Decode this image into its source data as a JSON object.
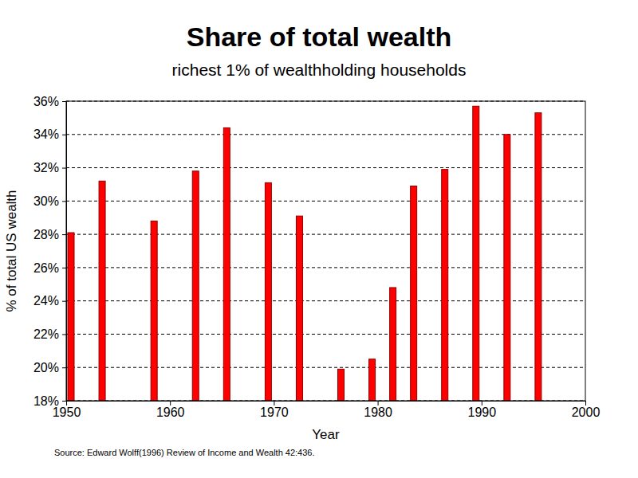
{
  "chart_data": {
    "type": "bar",
    "title": "Share of total wealth",
    "subtitle": "richest 1% of wealthholding households",
    "x_label": "Year",
    "y_label": "% of total US wealth",
    "annotations": [
      "Source: Edward Wolff(1996) Review of Income and Wealth 42:436."
    ],
    "x": [
      1950,
      1953,
      1958,
      1962,
      1965,
      1969,
      1972,
      1976,
      1979,
      1981,
      1983,
      1986,
      1989,
      1992,
      1995
    ],
    "values": [
      28.1,
      31.2,
      28.8,
      31.8,
      34.4,
      31.1,
      29.1,
      19.9,
      20.5,
      24.8,
      30.9,
      31.9,
      35.7,
      34.0,
      35.3
    ],
    "color": "#ff0000",
    "xlim": [
      1950,
      2000
    ],
    "xticks": [
      1950,
      1960,
      1970,
      1980,
      1990,
      2000
    ],
    "ylim": [
      18,
      36
    ],
    "yticks": [
      {
        "value": 18,
        "label": "18%"
      },
      {
        "value": 20,
        "label": "20%"
      },
      {
        "value": 22,
        "label": "22%"
      },
      {
        "value": 24,
        "label": "24%"
      },
      {
        "value": 26,
        "label": "26%"
      },
      {
        "value": 28,
        "label": "28%"
      },
      {
        "value": 30,
        "label": "30%"
      },
      {
        "value": 32,
        "label": "32%"
      },
      {
        "value": 34,
        "label": "34%"
      },
      {
        "value": 36,
        "label": "36%"
      }
    ],
    "grid": true
  }
}
